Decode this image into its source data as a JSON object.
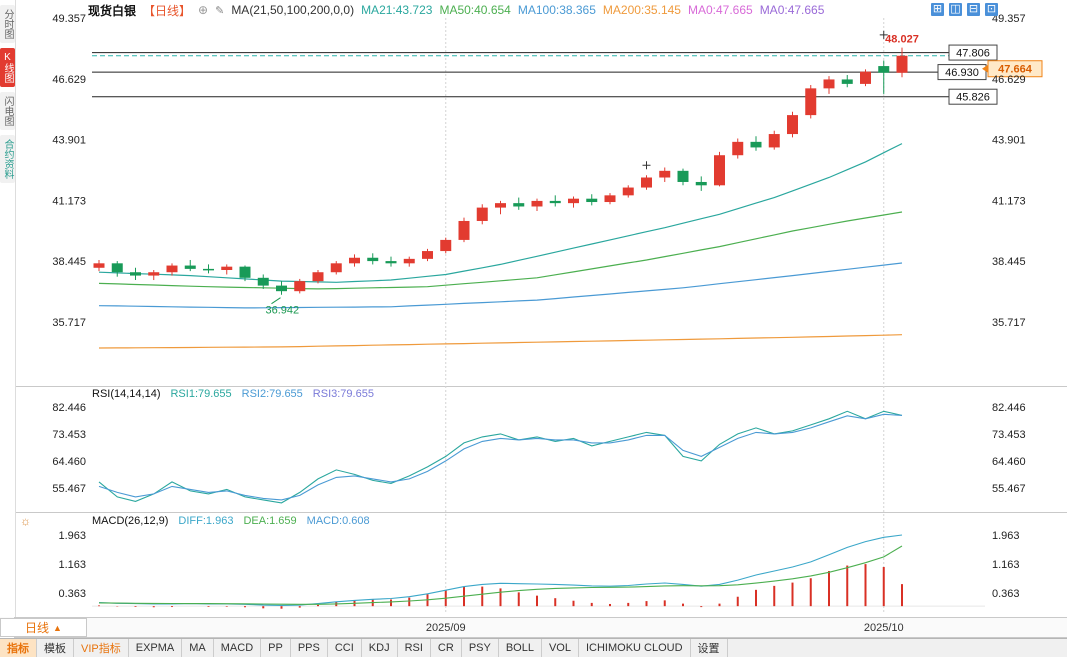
{
  "header": {
    "symbol": "现货白银",
    "period": "【日线】",
    "add_icon": "⊕",
    "edit_icon": "✎",
    "ma_group": "MA(21,50,100,200,0,0)",
    "ma_values": [
      {
        "text": "MA21:43.723",
        "color": "#2aa79e"
      },
      {
        "text": "MA50:40.654",
        "color": "#4caf50"
      },
      {
        "text": "MA100:38.365",
        "color": "#4a9ad4"
      },
      {
        "text": "MA200:35.145",
        "color": "#ef9a3c"
      },
      {
        "text": "MA0:47.665",
        "color": "#d86ad8"
      },
      {
        "text": "MA0:47.665",
        "color": "#9a6ad8"
      }
    ]
  },
  "toolbar": {
    "icons": [
      {
        "name": "layout-grid-icon-1",
        "glyph": "⊞"
      },
      {
        "name": "layout-grid-icon-2",
        "glyph": "◫"
      },
      {
        "name": "layout-grid-icon-3",
        "glyph": "⊟"
      },
      {
        "name": "layout-grid-icon-4",
        "glyph": "⊡"
      }
    ]
  },
  "sidebar": {
    "items": [
      {
        "label": "分时图",
        "active": false
      },
      {
        "label": "K线图",
        "active": true
      },
      {
        "label": "闪电图",
        "active": false
      },
      {
        "label": "合约资料",
        "active": false
      }
    ]
  },
  "rsi_header": {
    "title": "RSI(14,14,14)",
    "values": [
      {
        "text": "RSI1:79.655",
        "color": "#2aa79e"
      },
      {
        "text": "RSI2:79.655",
        "color": "#4a9ad4"
      },
      {
        "text": "RSI3:79.655",
        "color": "#7a7ad8"
      }
    ]
  },
  "macd_header": {
    "icon": "☼",
    "title": "MACD(26,12,9)",
    "values": [
      {
        "text": "DIFF:1.963",
        "color": "#3ba7c9"
      },
      {
        "text": "DEA:1.659",
        "color": "#4caf50"
      },
      {
        "text": "MACD:0.608",
        "color": "#4a9ad4"
      }
    ]
  },
  "footer": {
    "period_label": "日线",
    "period_arrow": "▲",
    "tabs": [
      {
        "label": "指标",
        "state": "active"
      },
      {
        "label": "模板"
      },
      {
        "label": "VIP指标",
        "state": "vip"
      },
      {
        "label": "EXPMA"
      },
      {
        "label": "MA"
      },
      {
        "label": "MACD"
      },
      {
        "label": "PP"
      },
      {
        "label": "PPS"
      },
      {
        "label": "CCI"
      },
      {
        "label": "KDJ"
      },
      {
        "label": "RSI"
      },
      {
        "label": "CR"
      },
      {
        "label": "PSY"
      },
      {
        "label": "BOLL"
      },
      {
        "label": "VOL"
      },
      {
        "label": "ICHIMOKU CLOUD"
      },
      {
        "label": "设置"
      }
    ]
  },
  "chart_data": {
    "type": "candlestick",
    "title": "现货白银 日线",
    "month_lines": [
      {
        "index": 19,
        "label": "2025/09"
      },
      {
        "index": 43,
        "label": "2025/10"
      }
    ],
    "main": {
      "y_ticks": [
        49.357,
        46.629,
        43.901,
        41.173,
        38.445,
        35.717
      ],
      "up_color": "#e23b30",
      "down_color": "#189a58",
      "candles": [
        [
          38.15,
          38.5,
          38.0,
          38.35
        ],
        [
          38.35,
          38.45,
          37.75,
          37.95
        ],
        [
          37.95,
          38.15,
          37.6,
          37.8
        ],
        [
          37.8,
          38.05,
          37.6,
          37.95
        ],
        [
          37.95,
          38.35,
          37.8,
          38.25
        ],
        [
          38.25,
          38.5,
          38.0,
          38.1
        ],
        [
          38.1,
          38.3,
          37.9,
          38.05
        ],
        [
          38.05,
          38.3,
          37.85,
          38.2
        ],
        [
          38.2,
          38.25,
          37.55,
          37.7
        ],
        [
          37.7,
          37.85,
          37.2,
          37.35
        ],
        [
          37.35,
          37.55,
          36.942,
          37.1
        ],
        [
          37.1,
          37.65,
          37.0,
          37.55
        ],
        [
          37.55,
          38.05,
          37.45,
          37.95
        ],
        [
          37.95,
          38.45,
          37.85,
          38.35
        ],
        [
          38.35,
          38.75,
          38.2,
          38.6
        ],
        [
          38.6,
          38.8,
          38.3,
          38.45
        ],
        [
          38.45,
          38.65,
          38.2,
          38.35
        ],
        [
          38.35,
          38.65,
          38.2,
          38.55
        ],
        [
          38.55,
          39.0,
          38.45,
          38.9
        ],
        [
          38.9,
          39.5,
          38.8,
          39.4
        ],
        [
          39.4,
          40.4,
          39.3,
          40.25
        ],
        [
          40.25,
          41.0,
          40.1,
          40.85
        ],
        [
          40.85,
          41.15,
          40.55,
          41.05
        ],
        [
          41.05,
          41.3,
          40.75,
          40.9
        ],
        [
          40.9,
          41.25,
          40.7,
          41.15
        ],
        [
          41.15,
          41.4,
          40.9,
          41.05
        ],
        [
          41.05,
          41.35,
          40.85,
          41.25
        ],
        [
          41.25,
          41.45,
          40.95,
          41.1
        ],
        [
          41.1,
          41.5,
          41.0,
          41.4
        ],
        [
          41.4,
          41.85,
          41.3,
          41.75
        ],
        [
          41.75,
          42.3,
          41.65,
          42.2
        ],
        [
          42.2,
          42.65,
          42.0,
          42.5
        ],
        [
          42.5,
          42.6,
          41.85,
          42.0
        ],
        [
          42.0,
          42.25,
          41.6,
          41.85
        ],
        [
          41.85,
          43.35,
          41.8,
          43.2
        ],
        [
          43.2,
          43.95,
          43.05,
          43.8
        ],
        [
          43.8,
          44.05,
          43.4,
          43.55
        ],
        [
          43.55,
          44.3,
          43.45,
          44.15
        ],
        [
          44.15,
          45.15,
          44.0,
          45.0
        ],
        [
          45.0,
          46.35,
          44.85,
          46.2
        ],
        [
          46.2,
          46.75,
          45.95,
          46.6
        ],
        [
          46.6,
          46.8,
          46.25,
          46.4
        ],
        [
          46.4,
          47.05,
          46.3,
          46.95
        ],
        [
          47.2,
          47.45,
          45.95,
          46.9
        ],
        [
          46.9,
          48.027,
          46.7,
          47.664
        ]
      ],
      "ma_series": [
        {
          "name": "MA21",
          "color": "#2aa79e",
          "points": [
            [
              0,
              37.95
            ],
            [
              5,
              37.8
            ],
            [
              10,
              37.55
            ],
            [
              13,
              37.5
            ],
            [
              16,
              37.6
            ],
            [
              19,
              37.85
            ],
            [
              22,
              38.3
            ],
            [
              25,
              38.85
            ],
            [
              28,
              39.4
            ],
            [
              31,
              39.95
            ],
            [
              34,
              40.55
            ],
            [
              37,
              41.3
            ],
            [
              40,
              42.2
            ],
            [
              42,
              42.9
            ],
            [
              44,
              43.723
            ]
          ]
        },
        {
          "name": "MA50",
          "color": "#4caf50",
          "points": [
            [
              0,
              37.45
            ],
            [
              6,
              37.3
            ],
            [
              12,
              37.2
            ],
            [
              18,
              37.3
            ],
            [
              24,
              37.7
            ],
            [
              30,
              38.5
            ],
            [
              34,
              39.1
            ],
            [
              38,
              39.8
            ],
            [
              41,
              40.25
            ],
            [
              44,
              40.654
            ]
          ]
        },
        {
          "name": "MA100",
          "color": "#4a9ad4",
          "points": [
            [
              0,
              36.45
            ],
            [
              8,
              36.35
            ],
            [
              16,
              36.4
            ],
            [
              24,
              36.7
            ],
            [
              32,
              37.25
            ],
            [
              38,
              37.8
            ],
            [
              44,
              38.365
            ]
          ]
        },
        {
          "name": "MA200",
          "color": "#ef9a3c",
          "points": [
            [
              0,
              34.55
            ],
            [
              10,
              34.6
            ],
            [
              20,
              34.75
            ],
            [
              30,
              34.9
            ],
            [
              38,
              35.03
            ],
            [
              44,
              35.145
            ]
          ]
        }
      ],
      "levels": [
        {
          "price": 47.806,
          "label": "47.806",
          "line": "solid",
          "style": "box-right"
        },
        {
          "price": 46.93,
          "label": "46.930",
          "line": "solid",
          "style": "box-edge"
        },
        {
          "price": 45.826,
          "label": "45.826",
          "line": "solid",
          "style": "box-right"
        },
        {
          "price": 47.664,
          "label": "47.664",
          "line": "dashed",
          "style": "axis-tag"
        }
      ],
      "annotations": {
        "high": {
          "index": 44,
          "price": 48.027,
          "label": "48.027",
          "color": "#d93025"
        },
        "low": {
          "index": 10,
          "price": 36.942,
          "label": "36.942",
          "color": "#1a9850"
        },
        "crosses": [
          {
            "index": 30,
            "price": 42.75
          },
          {
            "index": 43,
            "price": 48.6
          }
        ]
      }
    },
    "rsi": {
      "y_ticks": [
        82.446,
        73.453,
        64.46,
        55.467
      ],
      "series": [
        {
          "name": "RSI1",
          "color": "#2aa79e",
          "values": [
            57.5,
            52.5,
            51.0,
            53.5,
            57.5,
            54.5,
            53.5,
            55.0,
            52.5,
            51.5,
            50.5,
            54.0,
            58.5,
            61.5,
            60.0,
            58.0,
            57.0,
            59.5,
            62.5,
            66.0,
            70.5,
            72.5,
            73.5,
            71.5,
            72.5,
            71.0,
            72.0,
            69.5,
            71.0,
            72.5,
            74.0,
            73.0,
            66.0,
            64.5,
            70.0,
            73.5,
            75.5,
            73.5,
            74.5,
            76.5,
            78.5,
            81.0,
            78.5,
            81.0,
            79.655
          ]
        },
        {
          "name": "RSI2",
          "color": "#4a9ad4",
          "values": [
            56.0,
            54.0,
            52.5,
            53.5,
            56.0,
            55.0,
            54.0,
            54.5,
            53.0,
            52.0,
            51.5,
            53.0,
            56.5,
            59.0,
            59.5,
            58.5,
            57.5,
            58.5,
            61.0,
            64.5,
            68.5,
            71.0,
            72.0,
            71.5,
            72.0,
            71.5,
            71.5,
            70.5,
            70.5,
            71.5,
            73.0,
            73.0,
            68.0,
            66.0,
            69.0,
            72.0,
            74.0,
            73.5,
            74.0,
            75.5,
            77.5,
            79.5,
            78.5,
            80.0,
            79.655
          ]
        }
      ]
    },
    "macd": {
      "y_ticks": [
        1.963,
        1.163,
        0.363
      ],
      "hist_color": "#d93025",
      "diff": {
        "color": "#3ba7c9",
        "values": [
          0.1,
          0.08,
          0.07,
          0.06,
          0.06,
          0.07,
          0.06,
          0.06,
          0.05,
          0.03,
          0.02,
          0.03,
          0.07,
          0.12,
          0.16,
          0.19,
          0.21,
          0.26,
          0.34,
          0.44,
          0.54,
          0.6,
          0.63,
          0.62,
          0.61,
          0.6,
          0.58,
          0.56,
          0.55,
          0.57,
          0.61,
          0.64,
          0.6,
          0.55,
          0.6,
          0.72,
          0.86,
          0.97,
          1.08,
          1.22,
          1.42,
          1.62,
          1.78,
          1.9,
          1.963
        ]
      },
      "dea": {
        "color": "#4caf50",
        "values": [
          0.09,
          0.085,
          0.08,
          0.075,
          0.072,
          0.071,
          0.07,
          0.068,
          0.065,
          0.06,
          0.055,
          0.05,
          0.052,
          0.062,
          0.078,
          0.098,
          0.118,
          0.142,
          0.175,
          0.22,
          0.275,
          0.33,
          0.385,
          0.43,
          0.465,
          0.49,
          0.505,
          0.515,
          0.52,
          0.525,
          0.54,
          0.56,
          0.565,
          0.563,
          0.565,
          0.59,
          0.635,
          0.69,
          0.755,
          0.835,
          0.935,
          1.06,
          1.2,
          1.36,
          1.659
        ]
      }
    }
  }
}
